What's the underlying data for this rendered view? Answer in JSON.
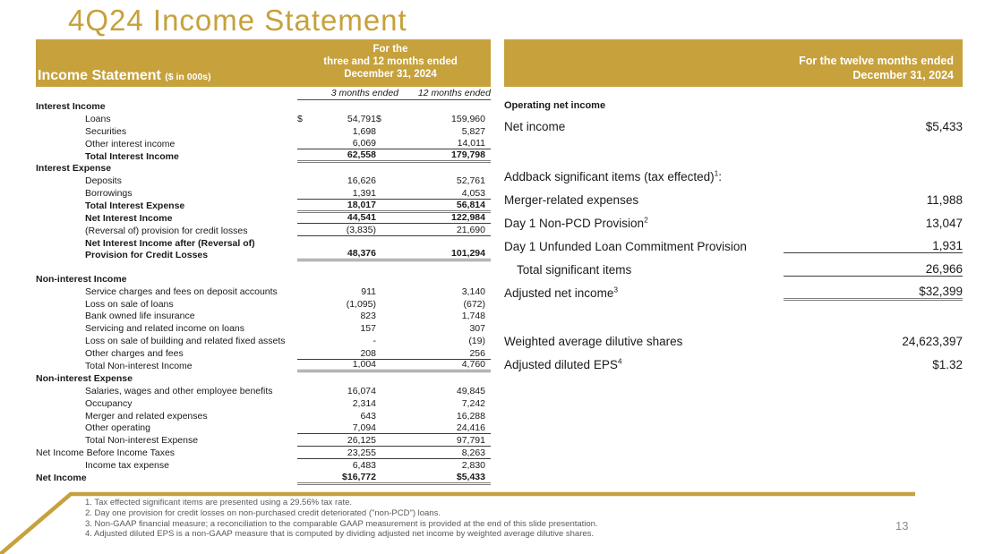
{
  "slide": {
    "title": "4Q24 Income Statement",
    "page_number": "13"
  },
  "colors": {
    "gold_accent": "#c6a13c",
    "band_text": "#ffffff",
    "body_text": "#1a1a1a",
    "footnote_gray": "#5a5a5a",
    "total_rule_gray": "#7d7d7d"
  },
  "left_table": {
    "band": {
      "title": "Income Statement",
      "subtitle": "($ in 000s)",
      "period_lines": [
        "For the",
        "three and 12 months ended",
        "December 31, 2024"
      ]
    },
    "col_headers": [
      "3 months ended",
      "12 months ended"
    ],
    "rows": [
      {
        "label": "Interest Income",
        "bold": true,
        "v1": "",
        "v2": "",
        "line": "none"
      },
      {
        "label": "Loans",
        "indent": true,
        "dollar": true,
        "v1": "54,791",
        "v2": "159,960",
        "line": "none"
      },
      {
        "label": "Securities",
        "indent": true,
        "v1": "1,698",
        "v2": "5,827",
        "line": "none"
      },
      {
        "label": "Other interest income",
        "indent": true,
        "v1": "6,069",
        "v2": "14,011",
        "line": "single"
      },
      {
        "label": "Total Interest Income",
        "indent": true,
        "bold": true,
        "v1": "62,558",
        "v2": "179,798",
        "line": "total"
      },
      {
        "label": "Interest Expense",
        "bold": true,
        "v1": "",
        "v2": "",
        "line": "none"
      },
      {
        "label": "Deposits",
        "indent": true,
        "v1": "16,626",
        "v2": "52,761",
        "line": "none"
      },
      {
        "label": "Borrowings",
        "indent": true,
        "v1": "1,391",
        "v2": "4,053",
        "line": "single"
      },
      {
        "label": "Total Interest Expense",
        "indent": true,
        "bold": true,
        "v1": "18,017",
        "v2": "56,814",
        "line": "total"
      },
      {
        "label": "Net Interest Income",
        "indent": true,
        "bold": true,
        "v1": "44,541",
        "v2": "122,984",
        "line": "single"
      },
      {
        "label": "(Reversal of) provision for credit losses",
        "indent": true,
        "v1": "(3,835)",
        "v2": "21,690",
        "line": "single"
      },
      {
        "label": "Net Interest Income after (Reversal of) Provision for Credit Losses",
        "indent": true,
        "bold": true,
        "two_line": true,
        "v1": "48,376",
        "v2": "101,294",
        "line": "total"
      },
      {
        "spacer": true
      },
      {
        "label": "Non-interest Income",
        "bold": true,
        "v1": "",
        "v2": "",
        "line": "none"
      },
      {
        "label": "Service charges and fees on deposit accounts",
        "indent": true,
        "v1": "911",
        "v2": "3,140",
        "line": "none"
      },
      {
        "label": "Loss on sale of loans",
        "indent": true,
        "v1": "(1,095)",
        "v2": "(672)",
        "line": "none"
      },
      {
        "label": "Bank owned life insurance",
        "indent": true,
        "v1": "823",
        "v2": "1,748",
        "line": "none"
      },
      {
        "label": "Servicing and related income on loans",
        "indent": true,
        "v1": "157",
        "v2": "307",
        "line": "none"
      },
      {
        "label": "Loss on sale of building and related fixed assets",
        "indent": true,
        "v1": "-",
        "v2": "(19)",
        "line": "none"
      },
      {
        "label": "Other charges and fees",
        "indent": true,
        "v1": "208",
        "v2": "256",
        "line": "single"
      },
      {
        "label": "Total Non-interest Income",
        "indent": true,
        "v1": "1,004",
        "v2": "4,760",
        "line": "total"
      },
      {
        "label": "Non-interest Expense",
        "bold": true,
        "v1": "",
        "v2": "",
        "line": "none"
      },
      {
        "label": "Salaries, wages and other employee benefits",
        "indent": true,
        "v1": "16,074",
        "v2": "49,845",
        "line": "none"
      },
      {
        "label": "Occupancy",
        "indent": true,
        "v1": "2,314",
        "v2": "7,242",
        "line": "none"
      },
      {
        "label": "Merger and related expenses",
        "indent": true,
        "v1": "643",
        "v2": "16,288",
        "line": "none"
      },
      {
        "label": "Other operating",
        "indent": true,
        "v1": "7,094",
        "v2": "24,416",
        "line": "single"
      },
      {
        "label": "Total Non-interest Expense",
        "indent": true,
        "v1": "26,125",
        "v2": "97,791",
        "line": "single"
      },
      {
        "label": "Net Income Before Income Taxes",
        "v1": "23,255",
        "v2": "8,263",
        "line": "single"
      },
      {
        "label": "Income tax expense",
        "indent": true,
        "v1": "6,483",
        "v2": "2,830",
        "line": "none"
      },
      {
        "label": "Net Income",
        "bold": true,
        "v1": "$16,772",
        "v2": "$5,433",
        "line": "total"
      }
    ]
  },
  "right_table": {
    "band": {
      "period_lines": [
        "For the twelve months ended",
        "December 31, 2024"
      ]
    },
    "rows": [
      {
        "label": "Operating net income",
        "small": true,
        "value": "",
        "line": "none"
      },
      {
        "label": "Net income",
        "value": "$5,433",
        "line": "none"
      },
      {
        "spacer": true,
        "h": 30
      },
      {
        "label": "Addback significant items (tax effected)",
        "sup": "1",
        "after": ":",
        "value": "",
        "line": "none"
      },
      {
        "label": "Merger-related expenses",
        "value": "11,988",
        "line": "none"
      },
      {
        "label": "Day 1 Non-PCD Provision",
        "sup": "2",
        "value": "13,047",
        "line": "none"
      },
      {
        "label": "Day 1 Unfunded Loan Commitment Provision",
        "value": "1,931",
        "line": "single"
      },
      {
        "label": "Total significant items",
        "indent": true,
        "value": "26,966",
        "line": "single"
      },
      {
        "label": "Adjusted net income",
        "sup": "3",
        "value": "$32,399",
        "line": "total"
      },
      {
        "spacer": true,
        "h": 28
      },
      {
        "label": "Weighted average dilutive shares",
        "value": "24,623,397",
        "line": "none"
      },
      {
        "label": "Adjusted diluted EPS",
        "sup": "4",
        "value": "$1.32",
        "line": "none"
      }
    ]
  },
  "footnotes": [
    "1. Tax effected significant items are presented using a 29.56% tax rate.",
    "2. Day one provision for credit losses on non-purchased credit deteriorated (\"non-PCD\") loans.",
    "3. Non-GAAP financial measure; a reconciliation to the comparable GAAP measurement is provided at the end of this slide presentation.",
    "4. Adjusted diluted EPS is a non-GAAP measure that is computed by dividing adjusted net income by weighted average dilutive shares."
  ]
}
